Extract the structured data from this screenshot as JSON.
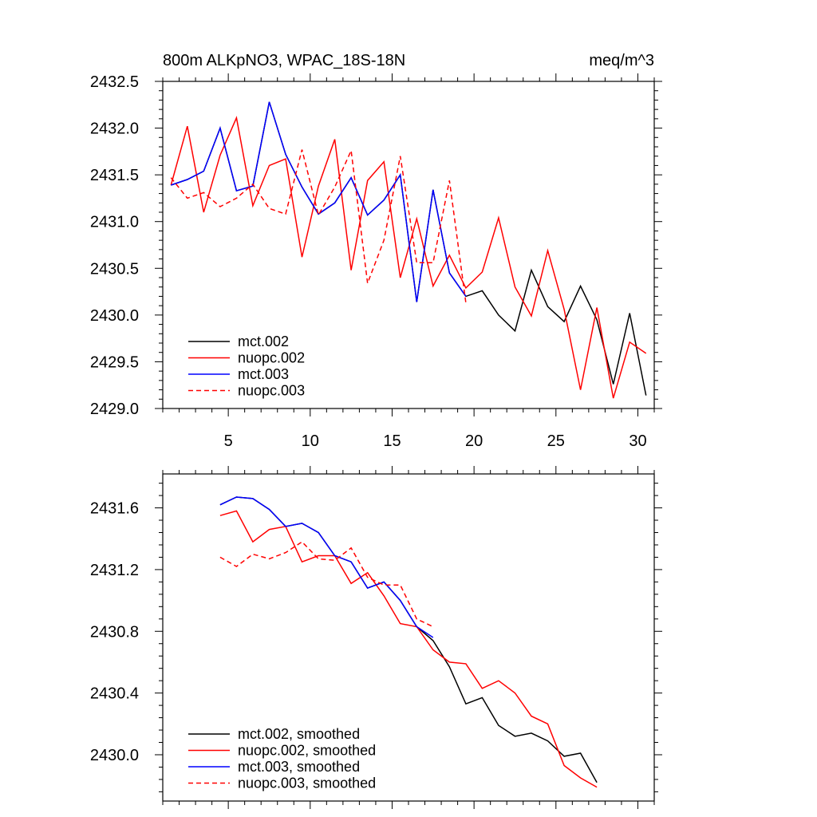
{
  "chart_data": [
    {
      "type": "line",
      "title": "800m ALKpNO3, WPAC_18S-18N",
      "units": "meq/m^3",
      "xlabel": "",
      "ylabel": "",
      "xlim": [
        1,
        31
      ],
      "ylim": [
        2429.0,
        2432.5
      ],
      "xticks": [
        5,
        10,
        15,
        20,
        25,
        30
      ],
      "xtick_labels": [
        "5",
        "10",
        "15",
        "20",
        "25",
        "30"
      ],
      "yticks": [
        2429.0,
        2429.5,
        2430.0,
        2430.5,
        2431.0,
        2431.5,
        2432.0,
        2432.5
      ],
      "ytick_labels": [
        "2429.0",
        "2429.5",
        "2430.0",
        "2430.5",
        "2431.0",
        "2431.5",
        "2432.0",
        "2432.5"
      ],
      "legend_position": "bottom-left",
      "series": [
        {
          "name": "mct.002",
          "color": "#000000",
          "dash": "solid",
          "x": [
            1.5,
            2.5,
            3.5,
            4.5,
            5.5,
            6.5,
            7.5,
            8.5,
            9.5,
            10.5,
            11.5,
            12.5,
            13.5,
            14.5,
            15.5,
            16.5,
            17.5,
            18.5,
            19.5,
            20.5,
            21.5,
            22.5,
            23.5,
            24.5,
            25.5,
            26.5,
            27.5,
            28.5,
            29.5,
            30.5
          ],
          "values": [
            2431.39,
            2431.45,
            2431.54,
            2432.0,
            2431.33,
            2431.38,
            2432.28,
            2431.72,
            2431.37,
            2431.08,
            2431.2,
            2431.47,
            2431.07,
            2431.23,
            2431.5,
            2430.14,
            2431.34,
            2430.45,
            2430.2,
            2430.26,
            2430.0,
            2429.83,
            2430.48,
            2430.09,
            2429.93,
            2430.31,
            2429.95,
            2429.26,
            2430.02,
            2429.14
          ]
        },
        {
          "name": "nuopc.002",
          "color": "#ff0000",
          "dash": "solid",
          "x": [
            1.5,
            2.5,
            3.5,
            4.5,
            5.5,
            6.5,
            7.5,
            8.5,
            9.5,
            10.5,
            11.5,
            12.5,
            13.5,
            14.5,
            15.5,
            16.5,
            17.5,
            18.5,
            19.5,
            20.5,
            21.5,
            22.5,
            23.5,
            24.5,
            25.5,
            26.5,
            27.5,
            28.5,
            29.5,
            30.5
          ],
          "values": [
            2431.39,
            2432.02,
            2431.1,
            2431.71,
            2432.11,
            2431.17,
            2431.6,
            2431.67,
            2430.62,
            2431.38,
            2431.88,
            2430.48,
            2431.44,
            2431.64,
            2430.4,
            2431.03,
            2430.31,
            2430.64,
            2430.29,
            2430.46,
            2431.04,
            2430.3,
            2429.99,
            2430.69,
            2430.06,
            2429.2,
            2430.08,
            2429.11,
            2429.71,
            2429.59
          ]
        },
        {
          "name": "mct.003",
          "color": "#0000ff",
          "dash": "solid",
          "x": [
            1.5,
            2.5,
            3.5,
            4.5,
            5.5,
            6.5,
            7.5,
            8.5,
            9.5,
            10.5,
            11.5,
            12.5,
            13.5,
            14.5,
            15.5,
            16.5,
            17.5,
            18.5,
            19.5
          ],
          "values": [
            2431.39,
            2431.45,
            2431.54,
            2432.0,
            2431.33,
            2431.38,
            2432.28,
            2431.72,
            2431.37,
            2431.08,
            2431.2,
            2431.47,
            2431.07,
            2431.23,
            2431.5,
            2430.14,
            2431.34,
            2430.45,
            2430.2
          ]
        },
        {
          "name": "nuopc.003",
          "color": "#ff0000",
          "dash": "dashed",
          "x": [
            1.5,
            2.5,
            3.5,
            4.5,
            5.5,
            6.5,
            7.5,
            8.5,
            9.5,
            10.5,
            11.5,
            12.5,
            13.5,
            14.5,
            15.5,
            16.5,
            17.5,
            18.5,
            19.5
          ],
          "values": [
            2431.47,
            2431.25,
            2431.31,
            2431.16,
            2431.25,
            2431.4,
            2431.14,
            2431.08,
            2431.77,
            2431.07,
            2431.37,
            2431.76,
            2430.34,
            2430.8,
            2431.7,
            2430.56,
            2430.56,
            2431.44,
            2430.13
          ]
        }
      ]
    },
    {
      "type": "line",
      "title": "",
      "xlabel": "",
      "ylabel": "",
      "xlim": [
        1,
        31
      ],
      "ylim": [
        2429.7,
        2431.82
      ],
      "xticks": [
        5,
        10,
        15,
        20,
        25,
        30
      ],
      "yticks": [
        2430.0,
        2430.4,
        2430.8,
        2431.2,
        2431.6
      ],
      "ytick_labels": [
        "2430.0",
        "2430.4",
        "2430.8",
        "2431.2",
        "2431.6"
      ],
      "legend_position": "bottom-left",
      "series": [
        {
          "name": "mct.002, smoothed",
          "color": "#000000",
          "dash": "solid",
          "x": [
            4.5,
            5.5,
            6.5,
            7.5,
            8.5,
            9.5,
            10.5,
            11.5,
            12.5,
            13.5,
            14.5,
            15.5,
            16.5,
            17.5,
            18.5,
            19.5,
            20.5,
            21.5,
            22.5,
            23.5,
            24.5,
            25.5,
            26.5,
            27.5
          ],
          "values": [
            2431.62,
            2431.67,
            2431.66,
            2431.59,
            2431.48,
            2431.5,
            2431.44,
            2431.29,
            2431.25,
            2431.08,
            2431.12,
            2431.0,
            2430.83,
            2430.74,
            2430.57,
            2430.33,
            2430.37,
            2430.19,
            2430.12,
            2430.14,
            2430.09,
            2429.99,
            2430.01,
            2429.82
          ]
        },
        {
          "name": "nuopc.002, smoothed",
          "color": "#ff0000",
          "dash": "solid",
          "x": [
            4.5,
            5.5,
            6.5,
            7.5,
            8.5,
            9.5,
            10.5,
            11.5,
            12.5,
            13.5,
            14.5,
            15.5,
            16.5,
            17.5,
            18.5,
            19.5,
            20.5,
            21.5,
            22.5,
            23.5,
            24.5,
            25.5,
            26.5,
            27.5
          ],
          "values": [
            2431.55,
            2431.58,
            2431.38,
            2431.46,
            2431.48,
            2431.25,
            2431.29,
            2431.29,
            2431.11,
            2431.18,
            2431.03,
            2430.85,
            2430.83,
            2430.68,
            2430.6,
            2430.59,
            2430.43,
            2430.48,
            2430.4,
            2430.25,
            2430.2,
            2429.93,
            2429.85,
            2429.79
          ]
        },
        {
          "name": "mct.003, smoothed",
          "color": "#0000ff",
          "dash": "solid",
          "x": [
            4.5,
            5.5,
            6.5,
            7.5,
            8.5,
            9.5,
            10.5,
            11.5,
            12.5,
            13.5,
            14.5,
            15.5,
            16.5,
            17.5
          ],
          "values": [
            2431.62,
            2431.67,
            2431.66,
            2431.59,
            2431.48,
            2431.5,
            2431.44,
            2431.29,
            2431.25,
            2431.08,
            2431.12,
            2431.0,
            2430.83,
            2430.76
          ]
        },
        {
          "name": "nuopc.003, smoothed",
          "color": "#ff0000",
          "dash": "dashed",
          "x": [
            4.5,
            5.5,
            6.5,
            7.5,
            8.5,
            9.5,
            10.5,
            11.5,
            12.5,
            13.5,
            14.5,
            15.5,
            16.5,
            17.5
          ],
          "values": [
            2431.28,
            2431.22,
            2431.3,
            2431.27,
            2431.31,
            2431.38,
            2431.27,
            2431.26,
            2431.34,
            2431.15,
            2431.1,
            2431.1,
            2430.88,
            2430.83
          ]
        }
      ]
    }
  ]
}
